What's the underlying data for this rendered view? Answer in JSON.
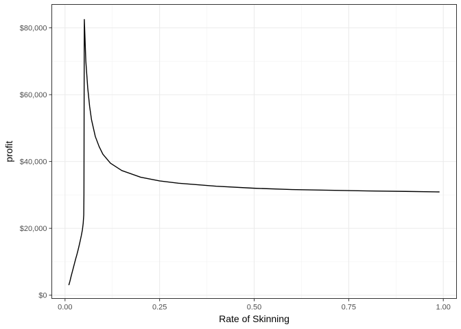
{
  "chart_data": {
    "type": "line",
    "title": "",
    "xlabel": "Rate of Skinning",
    "ylabel": "profit",
    "xlim": [
      -0.035,
      1.035
    ],
    "ylim": [
      -1000,
      87000
    ],
    "xticks": [
      0.0,
      0.25,
      0.5,
      0.75,
      1.0
    ],
    "xtick_labels": [
      "0.00",
      "0.25",
      "0.50",
      "0.75",
      "1.00"
    ],
    "yticks": [
      0,
      20000,
      40000,
      60000,
      80000
    ],
    "ytick_labels": [
      "$0",
      "$20,000",
      "$40,000",
      "$60,000",
      "$80,000"
    ],
    "grid": true,
    "theme": "bw",
    "series": [
      {
        "color": "#000000",
        "points": [
          [
            0.01,
            3000
          ],
          [
            0.013,
            4200
          ],
          [
            0.016,
            5600
          ],
          [
            0.019,
            6900
          ],
          [
            0.022,
            8200
          ],
          [
            0.025,
            9500
          ],
          [
            0.028,
            10800
          ],
          [
            0.031,
            12000
          ],
          [
            0.034,
            13300
          ],
          [
            0.037,
            14700
          ],
          [
            0.04,
            16200
          ],
          [
            0.043,
            17800
          ],
          [
            0.046,
            19600
          ],
          [
            0.048,
            21500
          ],
          [
            0.0495,
            24000
          ],
          [
            0.05,
            30000
          ],
          [
            0.0503,
            45000
          ],
          [
            0.0505,
            60000
          ],
          [
            0.0507,
            75000
          ],
          [
            0.051,
            82500
          ],
          [
            0.055,
            70000
          ],
          [
            0.06,
            62000
          ],
          [
            0.065,
            56500
          ],
          [
            0.07,
            52500
          ],
          [
            0.08,
            47500
          ],
          [
            0.09,
            44500
          ],
          [
            0.1,
            42200
          ],
          [
            0.12,
            39500
          ],
          [
            0.15,
            37300
          ],
          [
            0.2,
            35300
          ],
          [
            0.25,
            34200
          ],
          [
            0.3,
            33500
          ],
          [
            0.4,
            32600
          ],
          [
            0.5,
            32000
          ],
          [
            0.6,
            31600
          ],
          [
            0.7,
            31400
          ],
          [
            0.8,
            31200
          ],
          [
            0.9,
            31050
          ],
          [
            0.99,
            30900
          ]
        ]
      }
    ]
  }
}
